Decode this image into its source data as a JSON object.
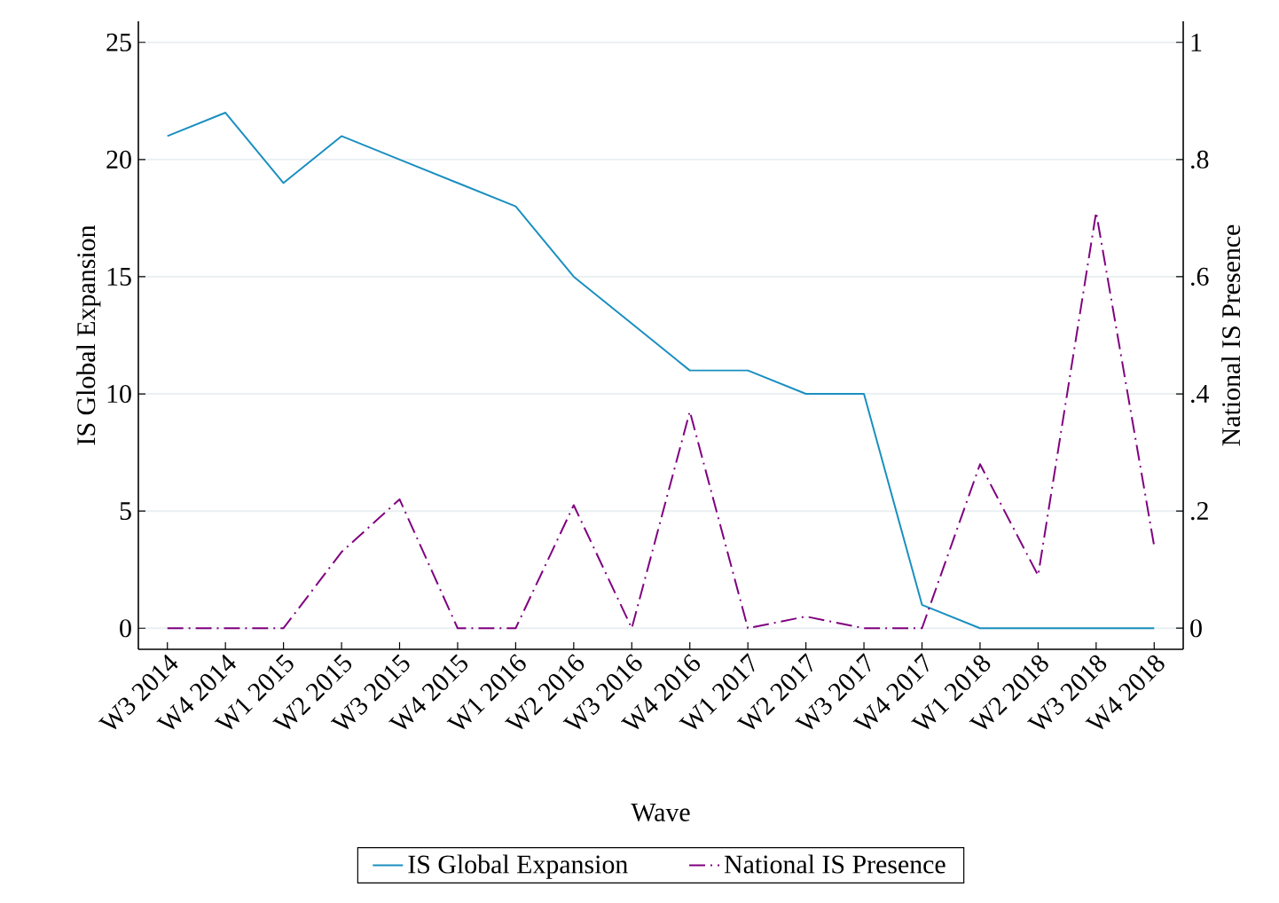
{
  "chart_data": {
    "type": "line",
    "xlabel": "Wave",
    "ylabel": "IS Global Expansion",
    "y2label": "National IS Presence",
    "categories": [
      "W3 2014",
      "W4 2014",
      "W1 2015",
      "W2 2015",
      "W3 2015",
      "W4 2015",
      "W1 2016",
      "W2 2016",
      "W3 2016",
      "W4 2016",
      "W1 2017",
      "W2 2017",
      "W3 2017",
      "W4 2017",
      "W1 2018",
      "W2 2018",
      "W3 2018",
      "W4 2018"
    ],
    "series": [
      {
        "name": "IS Global Expansion",
        "color": "#1a8fc0",
        "line_style": "solid",
        "values": [
          21,
          22,
          19,
          21,
          20,
          19,
          18,
          15,
          13,
          11,
          11,
          10,
          10,
          1,
          0,
          0,
          0,
          0
        ]
      },
      {
        "name": "National IS Presence",
        "color": "#800080",
        "line_style": "dashdot",
        "axis": "y2",
        "values": [
          0,
          0,
          0,
          0.13,
          0.22,
          0,
          0,
          0.21,
          0,
          0.37,
          0,
          0.02,
          0,
          0,
          0.28,
          0.09,
          0.71,
          0.14
        ]
      }
    ],
    "ylim": [
      -0.9,
      25.9
    ],
    "yticks": [
      0,
      5,
      10,
      15,
      20,
      25
    ],
    "y2lim": [
      -0.036,
      1.036
    ],
    "y2ticks": [
      0,
      {
        "value": 0.2,
        "label": ".2"
      },
      {
        "value": 0.4,
        "label": ".4"
      },
      {
        "value": 0.6,
        "label": ".6"
      },
      {
        "value": 0.8,
        "label": ".8"
      },
      1
    ],
    "grid": "y",
    "legend": "bottom",
    "marker": "none"
  }
}
